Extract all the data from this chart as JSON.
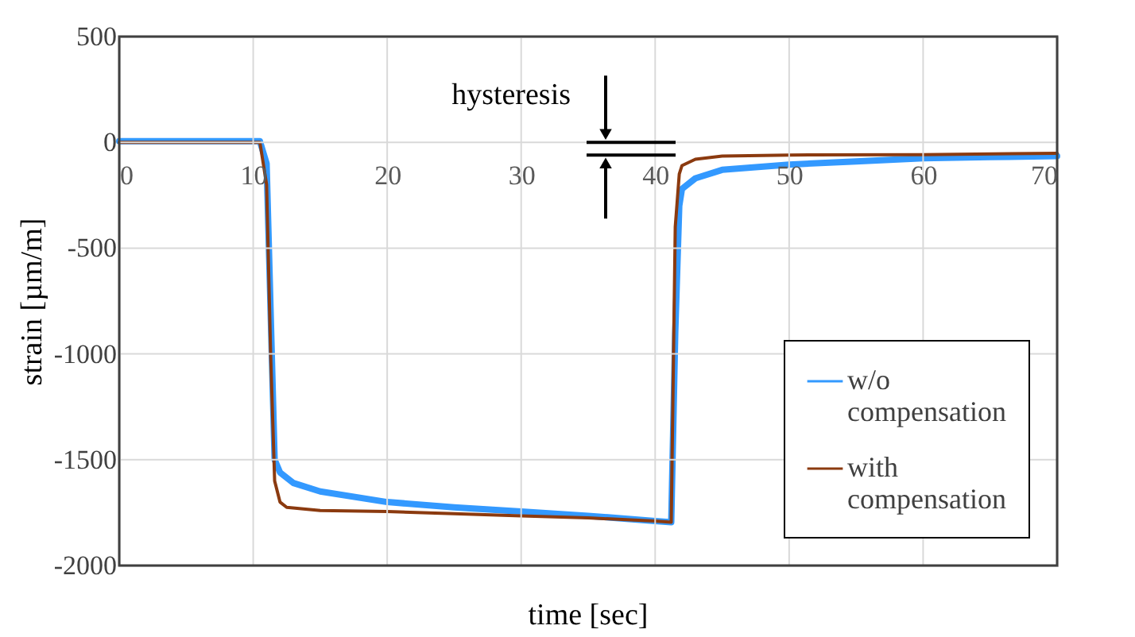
{
  "chart_data": {
    "type": "line",
    "xlabel": "time [sec]",
    "ylabel": "strain [µm/m]",
    "xlim": [
      0,
      70
    ],
    "xticks": [
      0,
      10,
      20,
      30,
      40,
      50,
      60,
      70
    ],
    "ylim": [
      -2000,
      500
    ],
    "yticks": [
      -2000,
      -1500,
      -1000,
      -500,
      0,
      500
    ],
    "grid": true,
    "legend": "bottom right",
    "annotations": [
      "hysteresis"
    ],
    "series": [
      {
        "name": "w/o compensation",
        "color": "#3399ff",
        "x": [
          0,
          5,
          10.5,
          11,
          11.3,
          11.6,
          12,
          13,
          15,
          20,
          25,
          30,
          35,
          40,
          41.2,
          41.5,
          41.8,
          42,
          43,
          45,
          50,
          55,
          60,
          65,
          70
        ],
        "values": [
          5,
          5,
          5,
          -100,
          -800,
          -1500,
          -1560,
          -1610,
          -1650,
          -1700,
          -1725,
          -1745,
          -1765,
          -1790,
          -1795,
          -900,
          -300,
          -220,
          -170,
          -130,
          -105,
          -90,
          -75,
          -70,
          -65
        ]
      },
      {
        "name": "with compensation",
        "color": "#8b3a0f",
        "x": [
          0,
          5,
          10.5,
          11,
          11.3,
          11.6,
          12,
          12.5,
          15,
          20,
          25,
          30,
          35,
          40,
          41.2,
          41.5,
          41.8,
          42,
          43,
          45,
          50,
          60,
          70
        ],
        "values": [
          0,
          0,
          0,
          -200,
          -1000,
          -1600,
          -1700,
          -1725,
          -1740,
          -1745,
          -1755,
          -1765,
          -1775,
          -1790,
          -1795,
          -400,
          -150,
          -110,
          -80,
          -65,
          -60,
          -58,
          -52
        ]
      }
    ]
  }
}
